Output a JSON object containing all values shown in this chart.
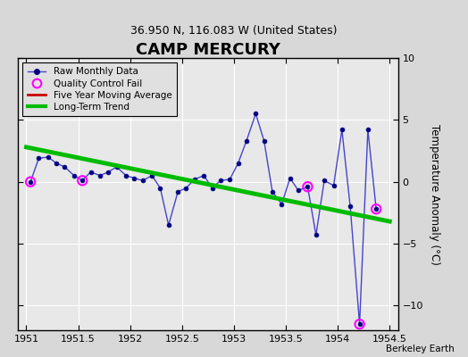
{
  "title": "CAMP MERCURY",
  "subtitle": "36.950 N, 116.083 W (United States)",
  "credit": "Berkeley Earth",
  "ylabel": "Temperature Anomaly (°C)",
  "xlim": [
    1950.92,
    1954.58
  ],
  "ylim": [
    -12,
    10
  ],
  "yticks": [
    -10,
    -5,
    0,
    5,
    10
  ],
  "xticks": [
    1951,
    1951.5,
    1952,
    1952.5,
    1953,
    1953.5,
    1954,
    1954.5
  ],
  "xticklabels": [
    "1951",
    "1951.5",
    "1952",
    "1952.5",
    "1953",
    "1953.5",
    "1954",
    "1954.5"
  ],
  "raw_x": [
    1951.04,
    1951.12,
    1951.21,
    1951.29,
    1951.37,
    1951.46,
    1951.54,
    1951.62,
    1951.71,
    1951.79,
    1951.87,
    1951.96,
    1952.04,
    1952.12,
    1952.21,
    1952.29,
    1952.37,
    1952.46,
    1952.54,
    1952.62,
    1952.71,
    1952.79,
    1952.87,
    1952.96,
    1953.04,
    1953.12,
    1953.21,
    1953.29,
    1953.37,
    1953.46,
    1953.54,
    1953.62,
    1953.71,
    1953.79,
    1953.87,
    1953.96,
    1954.04,
    1954.12,
    1954.21,
    1954.29,
    1954.37
  ],
  "raw_y": [
    0.0,
    1.9,
    2.0,
    1.5,
    1.2,
    0.5,
    0.1,
    0.8,
    0.5,
    0.8,
    1.2,
    0.5,
    0.3,
    0.1,
    0.5,
    -0.5,
    -3.5,
    -0.8,
    -0.5,
    0.2,
    0.5,
    -0.5,
    0.1,
    0.2,
    1.5,
    3.3,
    5.5,
    3.3,
    -0.8,
    -1.8,
    0.3,
    -0.7,
    -0.4,
    -4.3,
    0.1,
    -0.3,
    4.2,
    -2.0,
    -11.5,
    4.2,
    -2.2
  ],
  "qc_fail_x": [
    1951.04,
    1951.54,
    1953.71,
    1954.21,
    1954.37
  ],
  "qc_fail_y": [
    0.0,
    0.1,
    -0.4,
    -11.5,
    -2.2
  ],
  "trend_x": [
    1951.0,
    1954.5
  ],
  "trend_y": [
    2.8,
    -3.2
  ],
  "bg_color": "#d8d8d8",
  "plot_bg_color": "#e8e8e8",
  "raw_line_color": "#4444cc",
  "raw_marker_color": "#000080",
  "qc_color": "#ff00ff",
  "trend_color": "#00bb00",
  "ma_color": "#cc0000",
  "grid_color": "#ffffff",
  "title_fontsize": 13,
  "subtitle_fontsize": 9
}
